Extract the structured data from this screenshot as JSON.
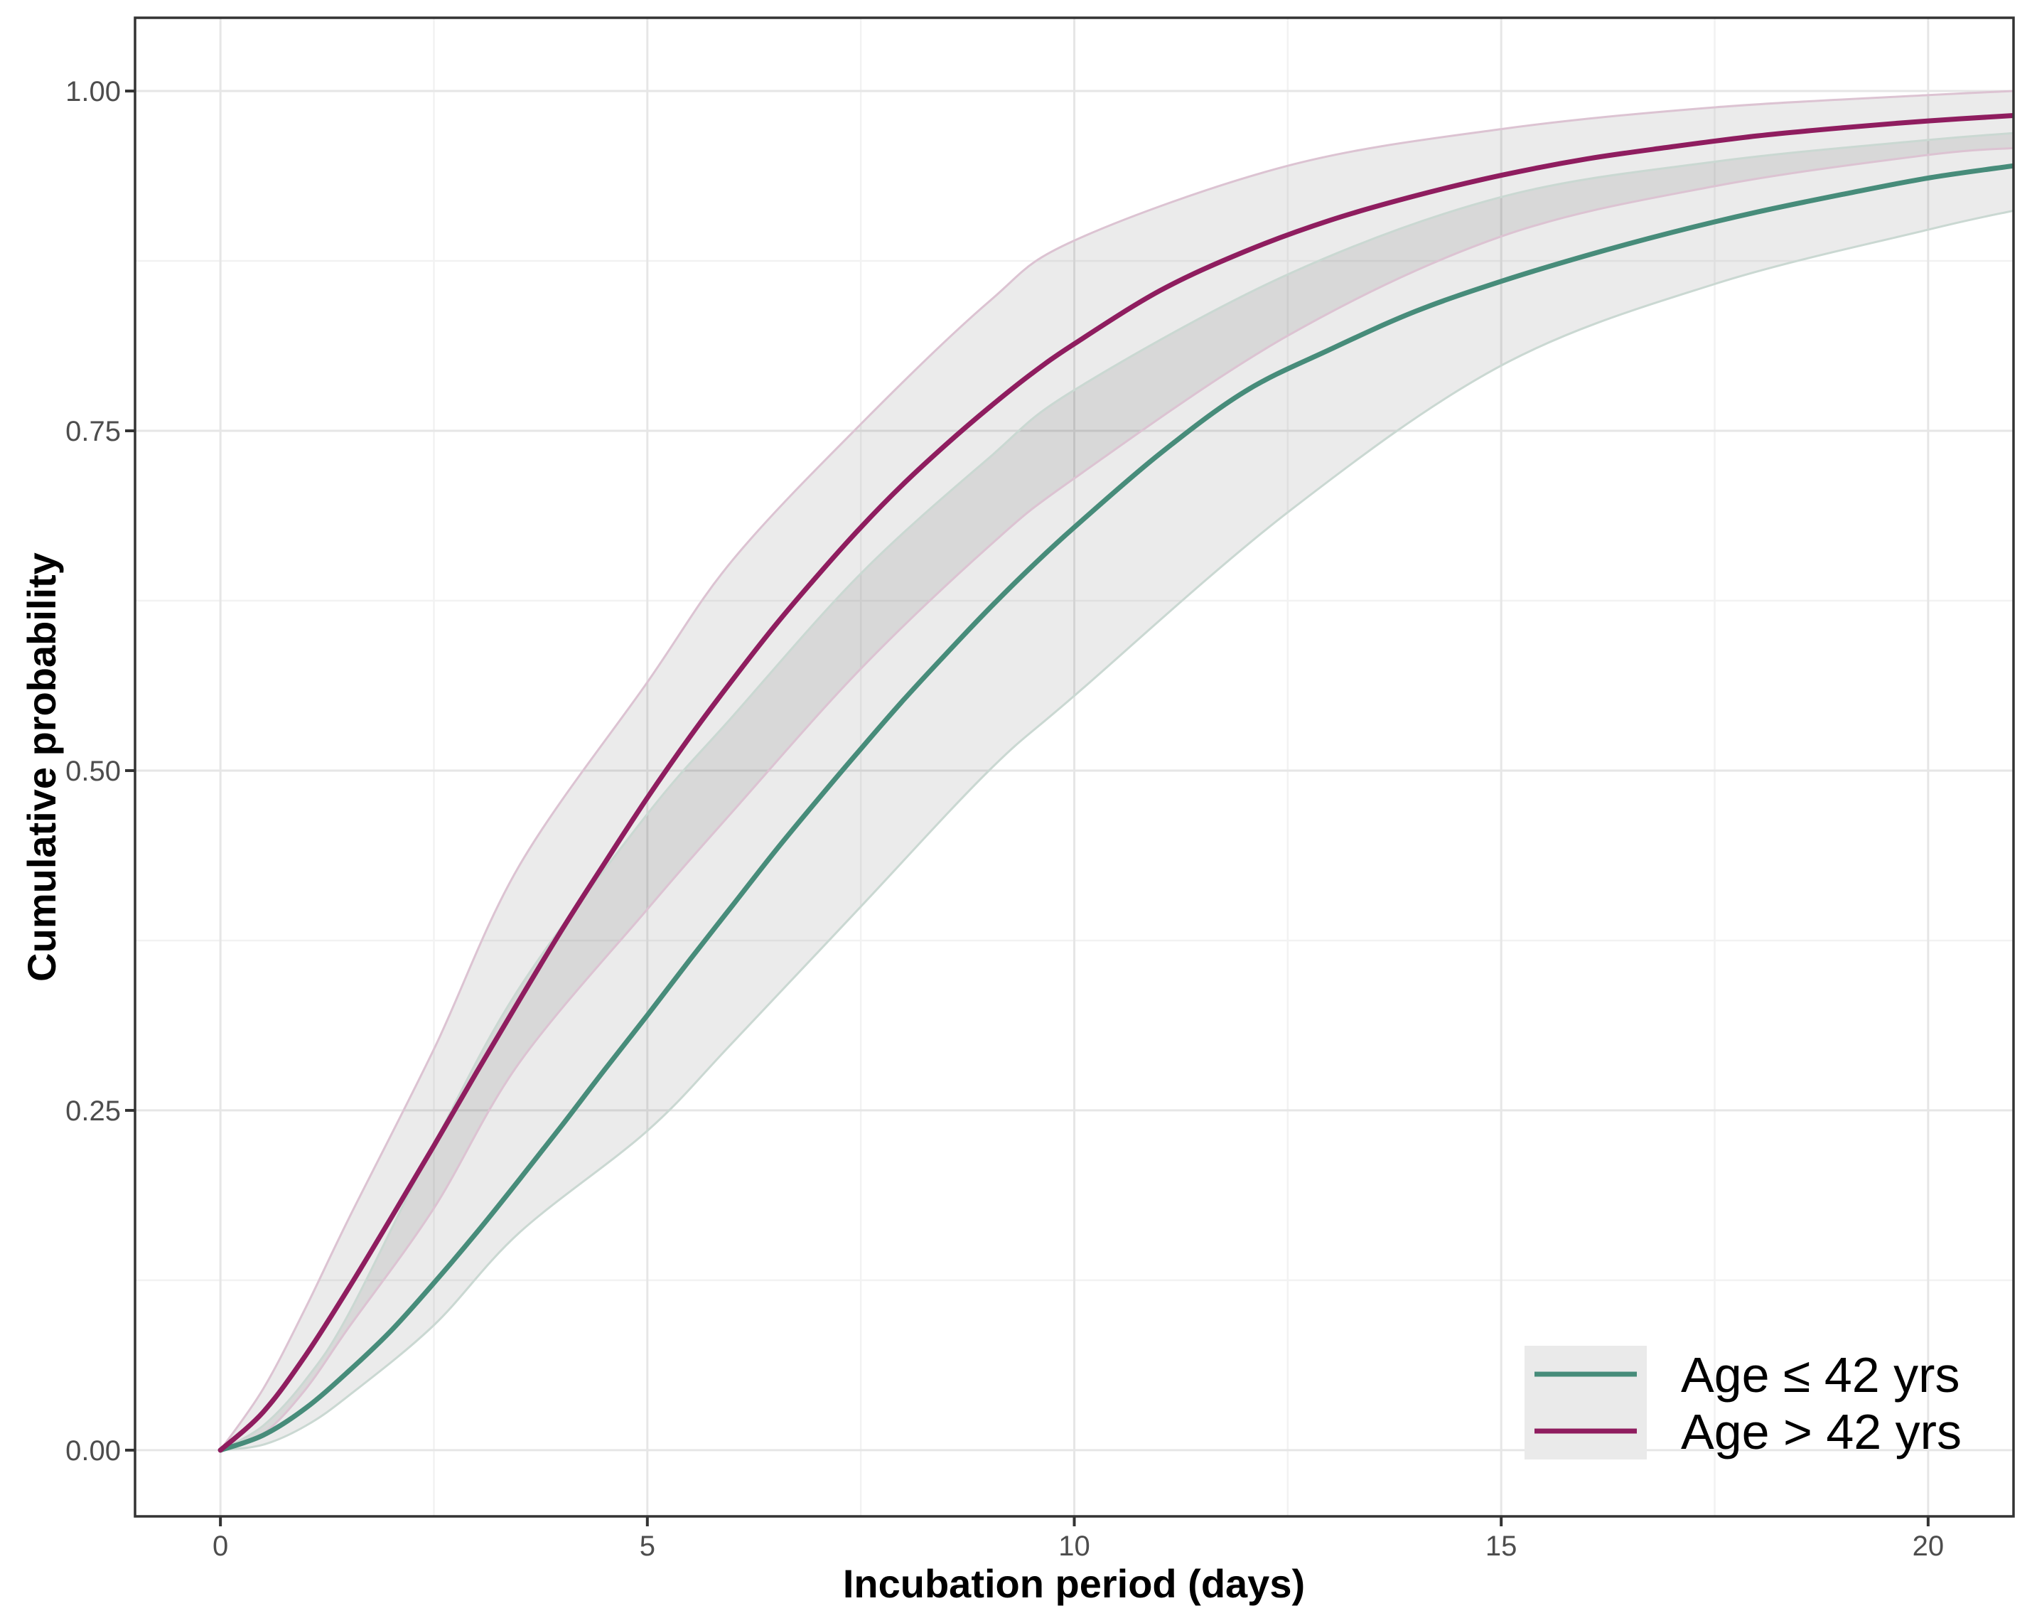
{
  "chart_data": {
    "type": "line",
    "title": "",
    "xlabel": "Incubation period (days)",
    "ylabel": "Cumulative probability",
    "xlim": [
      -1,
      21
    ],
    "ylim": [
      -0.0487,
      1.0539
    ],
    "x_ticks": [
      0,
      5,
      10,
      15,
      20
    ],
    "x_tick_labels": [
      "0",
      "5",
      "10",
      "15",
      "20"
    ],
    "y_ticks": [
      0,
      0.25,
      0.5,
      0.75,
      1
    ],
    "y_tick_labels": [
      "0.00",
      "0.25",
      "0.50",
      "0.75",
      "1.00"
    ],
    "x_minor_ticks": [
      2.5,
      7.5,
      12.5,
      17.5
    ],
    "y_minor_ticks": [
      0.125,
      0.375,
      0.625,
      0.875
    ],
    "grid": "on",
    "legend_position": "inside-bottom-right",
    "x": [
      0,
      0.5,
      1,
      1.5,
      2,
      2.5,
      3,
      3.5,
      4,
      4.5,
      5,
      5.5,
      6,
      6.5,
      7,
      7.5,
      8,
      8.5,
      9,
      9.5,
      10,
      11,
      12,
      13,
      14,
      15,
      16,
      17,
      18,
      19,
      20,
      21
    ],
    "ci_x": [
      0,
      0.5,
      1,
      1.5,
      2.5,
      3.5,
      5,
      6,
      7.5,
      9,
      10,
      12.5,
      15,
      17.5,
      20,
      21
    ],
    "series": [
      {
        "name": "Age ≤ 42 yrs",
        "color": "#478C7A",
        "band_edge_color": "#CAD8D2",
        "values": [
          0,
          0.011,
          0.031,
          0.058,
          0.088,
          0.123,
          0.16,
          0.199,
          0.239,
          0.28,
          0.32,
          0.361,
          0.401,
          0.441,
          0.479,
          0.516,
          0.552,
          0.586,
          0.619,
          0.65,
          0.679,
          0.733,
          0.779,
          0.81,
          0.838,
          0.86,
          0.879,
          0.896,
          0.911,
          0.924,
          0.936,
          0.945
        ],
        "ci_lower": [
          0,
          0.004,
          0.018,
          0.04,
          0.092,
          0.16,
          0.235,
          0.3,
          0.4,
          0.5,
          0.555,
          0.69,
          0.798,
          0.858,
          0.898,
          0.912
        ],
        "ci_upper": [
          0,
          0.018,
          0.052,
          0.1,
          0.225,
          0.34,
          0.468,
          0.54,
          0.645,
          0.73,
          0.78,
          0.865,
          0.922,
          0.948,
          0.964,
          0.969
        ]
      },
      {
        "name": "Age > 42 yrs",
        "color": "#8F1D5F",
        "band_edge_color": "#DCC3D2",
        "values": [
          0,
          0.028,
          0.07,
          0.119,
          0.171,
          0.224,
          0.278,
          0.331,
          0.383,
          0.432,
          0.48,
          0.525,
          0.567,
          0.607,
          0.644,
          0.679,
          0.711,
          0.74,
          0.767,
          0.792,
          0.814,
          0.853,
          0.882,
          0.905,
          0.923,
          0.938,
          0.95,
          0.959,
          0.967,
          0.973,
          0.978,
          0.982
        ],
        "ci_lower": [
          0,
          0.012,
          0.045,
          0.09,
          0.178,
          0.285,
          0.398,
          0.47,
          0.575,
          0.665,
          0.715,
          0.82,
          0.893,
          0.93,
          0.953,
          0.958
        ],
        "ci_upper": [
          0,
          0.045,
          0.105,
          0.17,
          0.295,
          0.43,
          0.565,
          0.655,
          0.755,
          0.845,
          0.89,
          0.945,
          0.972,
          0.988,
          0.997,
          1.0
        ]
      }
    ],
    "band_fill": "rgba(0,0,0,0.08)"
  },
  "colors": {
    "background": "#ffffff",
    "panel_border": "#333333",
    "grid_major": "#E6E6E6",
    "grid_minor": "#F2F2F2",
    "axis_text": "#4d4d4d",
    "axis_title": "#000000",
    "legend_key_bg": "#EAEAEA",
    "series_green": "#478C7A",
    "series_maroon": "#8F1D5F"
  }
}
